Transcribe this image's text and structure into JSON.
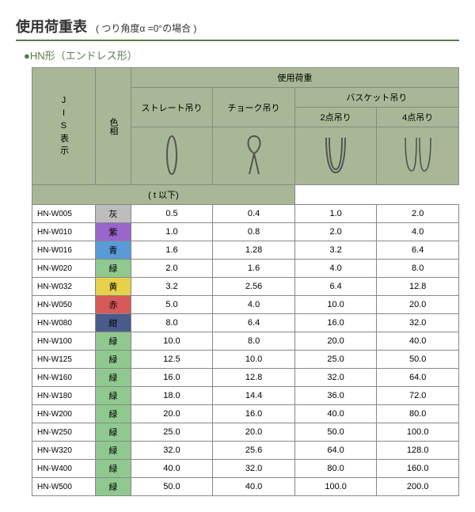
{
  "title": "使用荷重表",
  "title_sub": "( つり角度α =0°の場合 )",
  "subtitle": "●HN形（エンドレス形）",
  "headers": {
    "jis": "JIS表示",
    "color": "色相",
    "load": "使用荷重",
    "straight": "ストレート吊り",
    "choke": "チョーク吊り",
    "basket": "バスケット吊り",
    "pt2": "2点吊り",
    "pt4": "4点吊り",
    "unit": "( t 以下)"
  },
  "colors": {
    "灰": "#bdbdbd",
    "紫": "#9966cc",
    "青": "#5a9ad6",
    "緑": "#8fc98f",
    "黄": "#e6d24a",
    "赤": "#d65a5a",
    "紺": "#4a5a8a"
  },
  "rows": [
    {
      "jis": "HN-W005",
      "color": "灰",
      "v": [
        0.5,
        0.4,
        1.0,
        2.0
      ]
    },
    {
      "jis": "HN-W010",
      "color": "紫",
      "v": [
        1.0,
        0.8,
        2.0,
        4.0
      ]
    },
    {
      "jis": "HN-W016",
      "color": "青",
      "v": [
        1.6,
        1.28,
        3.2,
        6.4
      ]
    },
    {
      "jis": "HN-W020",
      "color": "緑",
      "v": [
        2.0,
        1.6,
        4.0,
        8.0
      ]
    },
    {
      "jis": "HN-W032",
      "color": "黄",
      "v": [
        3.2,
        2.56,
        6.4,
        12.8
      ]
    },
    {
      "jis": "HN-W050",
      "color": "赤",
      "v": [
        5.0,
        4.0,
        10.0,
        20.0
      ]
    },
    {
      "jis": "HN-W080",
      "color": "紺",
      "v": [
        8.0,
        6.4,
        16.0,
        32.0
      ]
    },
    {
      "jis": "HN-W100",
      "color": "緑",
      "v": [
        10.0,
        8.0,
        20.0,
        40.0
      ]
    },
    {
      "jis": "HN-W125",
      "color": "緑",
      "v": [
        12.5,
        10.0,
        25.0,
        50.0
      ]
    },
    {
      "jis": "HN-W160",
      "color": "緑",
      "v": [
        16.0,
        12.8,
        32.0,
        64.0
      ]
    },
    {
      "jis": "HN-W180",
      "color": "緑",
      "v": [
        18.0,
        14.4,
        36.0,
        72.0
      ]
    },
    {
      "jis": "HN-W200",
      "color": "緑",
      "v": [
        20.0,
        16.0,
        40.0,
        80.0
      ]
    },
    {
      "jis": "HN-W250",
      "color": "緑",
      "v": [
        25.0,
        20.0,
        50.0,
        100.0
      ]
    },
    {
      "jis": "HN-W320",
      "color": "緑",
      "v": [
        32.0,
        25.6,
        64.0,
        128.0
      ]
    },
    {
      "jis": "HN-W400",
      "color": "緑",
      "v": [
        40.0,
        32.0,
        80.0,
        160.0
      ]
    },
    {
      "jis": "HN-W500",
      "color": "緑",
      "v": [
        50.0,
        40.0,
        100.0,
        200.0
      ]
    }
  ]
}
